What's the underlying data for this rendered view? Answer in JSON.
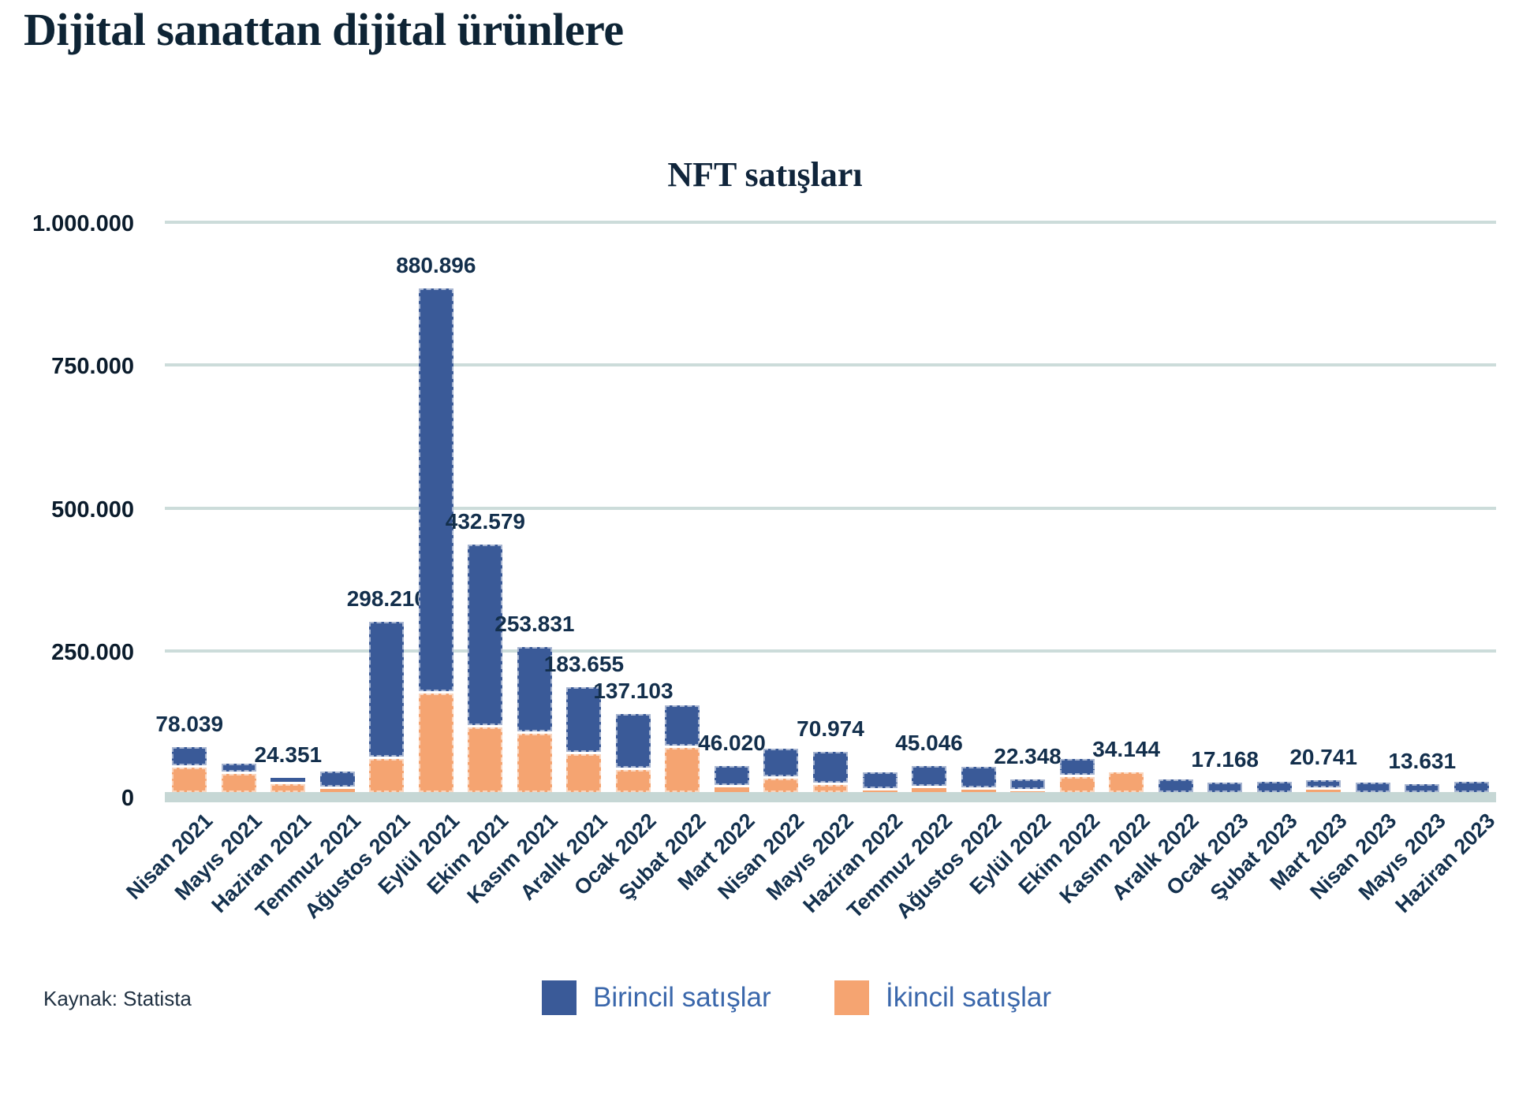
{
  "page": {
    "title": "Dijital sanattan dijital ürünlere",
    "source": "Kaynak: Statista"
  },
  "chart_data": {
    "type": "bar",
    "stacked": true,
    "title": "NFT satışları",
    "grid": true,
    "legend_position": "bottom",
    "y_axis": {
      "min": 0,
      "max": 1000000,
      "ticks": [
        "1.000.000",
        "750.000",
        "500.000",
        "250.000",
        "0"
      ]
    },
    "categories": [
      "Nisan 2021",
      "Mayıs 2021",
      "Haziran 2021",
      "Temmuz 2021",
      "Ağustos 2021",
      "Eylül 2021",
      "Ekim 2021",
      "Kasım 2021",
      "Aralık 2021",
      "Ocak 2022",
      "Şubat 2022",
      "Mart 2022",
      "Nisan 2022",
      "Mayıs 2022",
      "Haziran 2022",
      "Temmuz 2022",
      "Ağustos 2022",
      "Eylül 2022",
      "Ekim 2022",
      "Kasım 2022",
      "Aralık 2022",
      "Ocak 2023",
      "Şubat 2023",
      "Mart 2023",
      "Nisan 2023",
      "Mayıs 2023",
      "Haziran 2023"
    ],
    "series": [
      {
        "name": "Birincil satışlar",
        "color": "#3a5a98",
        "stack_order": "top",
        "values": [
          35039,
          18000,
          10351,
          31000,
          240210,
          708896,
          319579,
          151831,
          117655,
          99103,
          75000,
          38020,
          53000,
          58974,
          32000,
          38046,
          40000,
          20348,
          32000,
          0,
          22000,
          17168,
          18000,
          16741,
          16000,
          13631,
          18000
        ]
      },
      {
        "name": "İkincil satışlar",
        "color": "#f5a471",
        "stack_order": "bottom",
        "values": [
          43000,
          32000,
          14000,
          5000,
          58000,
          172000,
          113000,
          102000,
          66000,
          38000,
          77000,
          8000,
          23000,
          12000,
          3000,
          7000,
          3500,
          2000,
          26000,
          34144,
          0,
          0,
          0,
          4000,
          0,
          0,
          0
        ]
      }
    ],
    "bar_total_labels": [
      "78.039",
      null,
      "24.351",
      null,
      "298.210",
      "880.896",
      "432.579",
      "253.831",
      "183.655",
      "137.103",
      null,
      "46.020",
      null,
      "70.974",
      null,
      "45.046",
      null,
      "22.348",
      null,
      "34.144",
      null,
      "17.168",
      null,
      "20.741",
      null,
      "13.631",
      null
    ]
  }
}
